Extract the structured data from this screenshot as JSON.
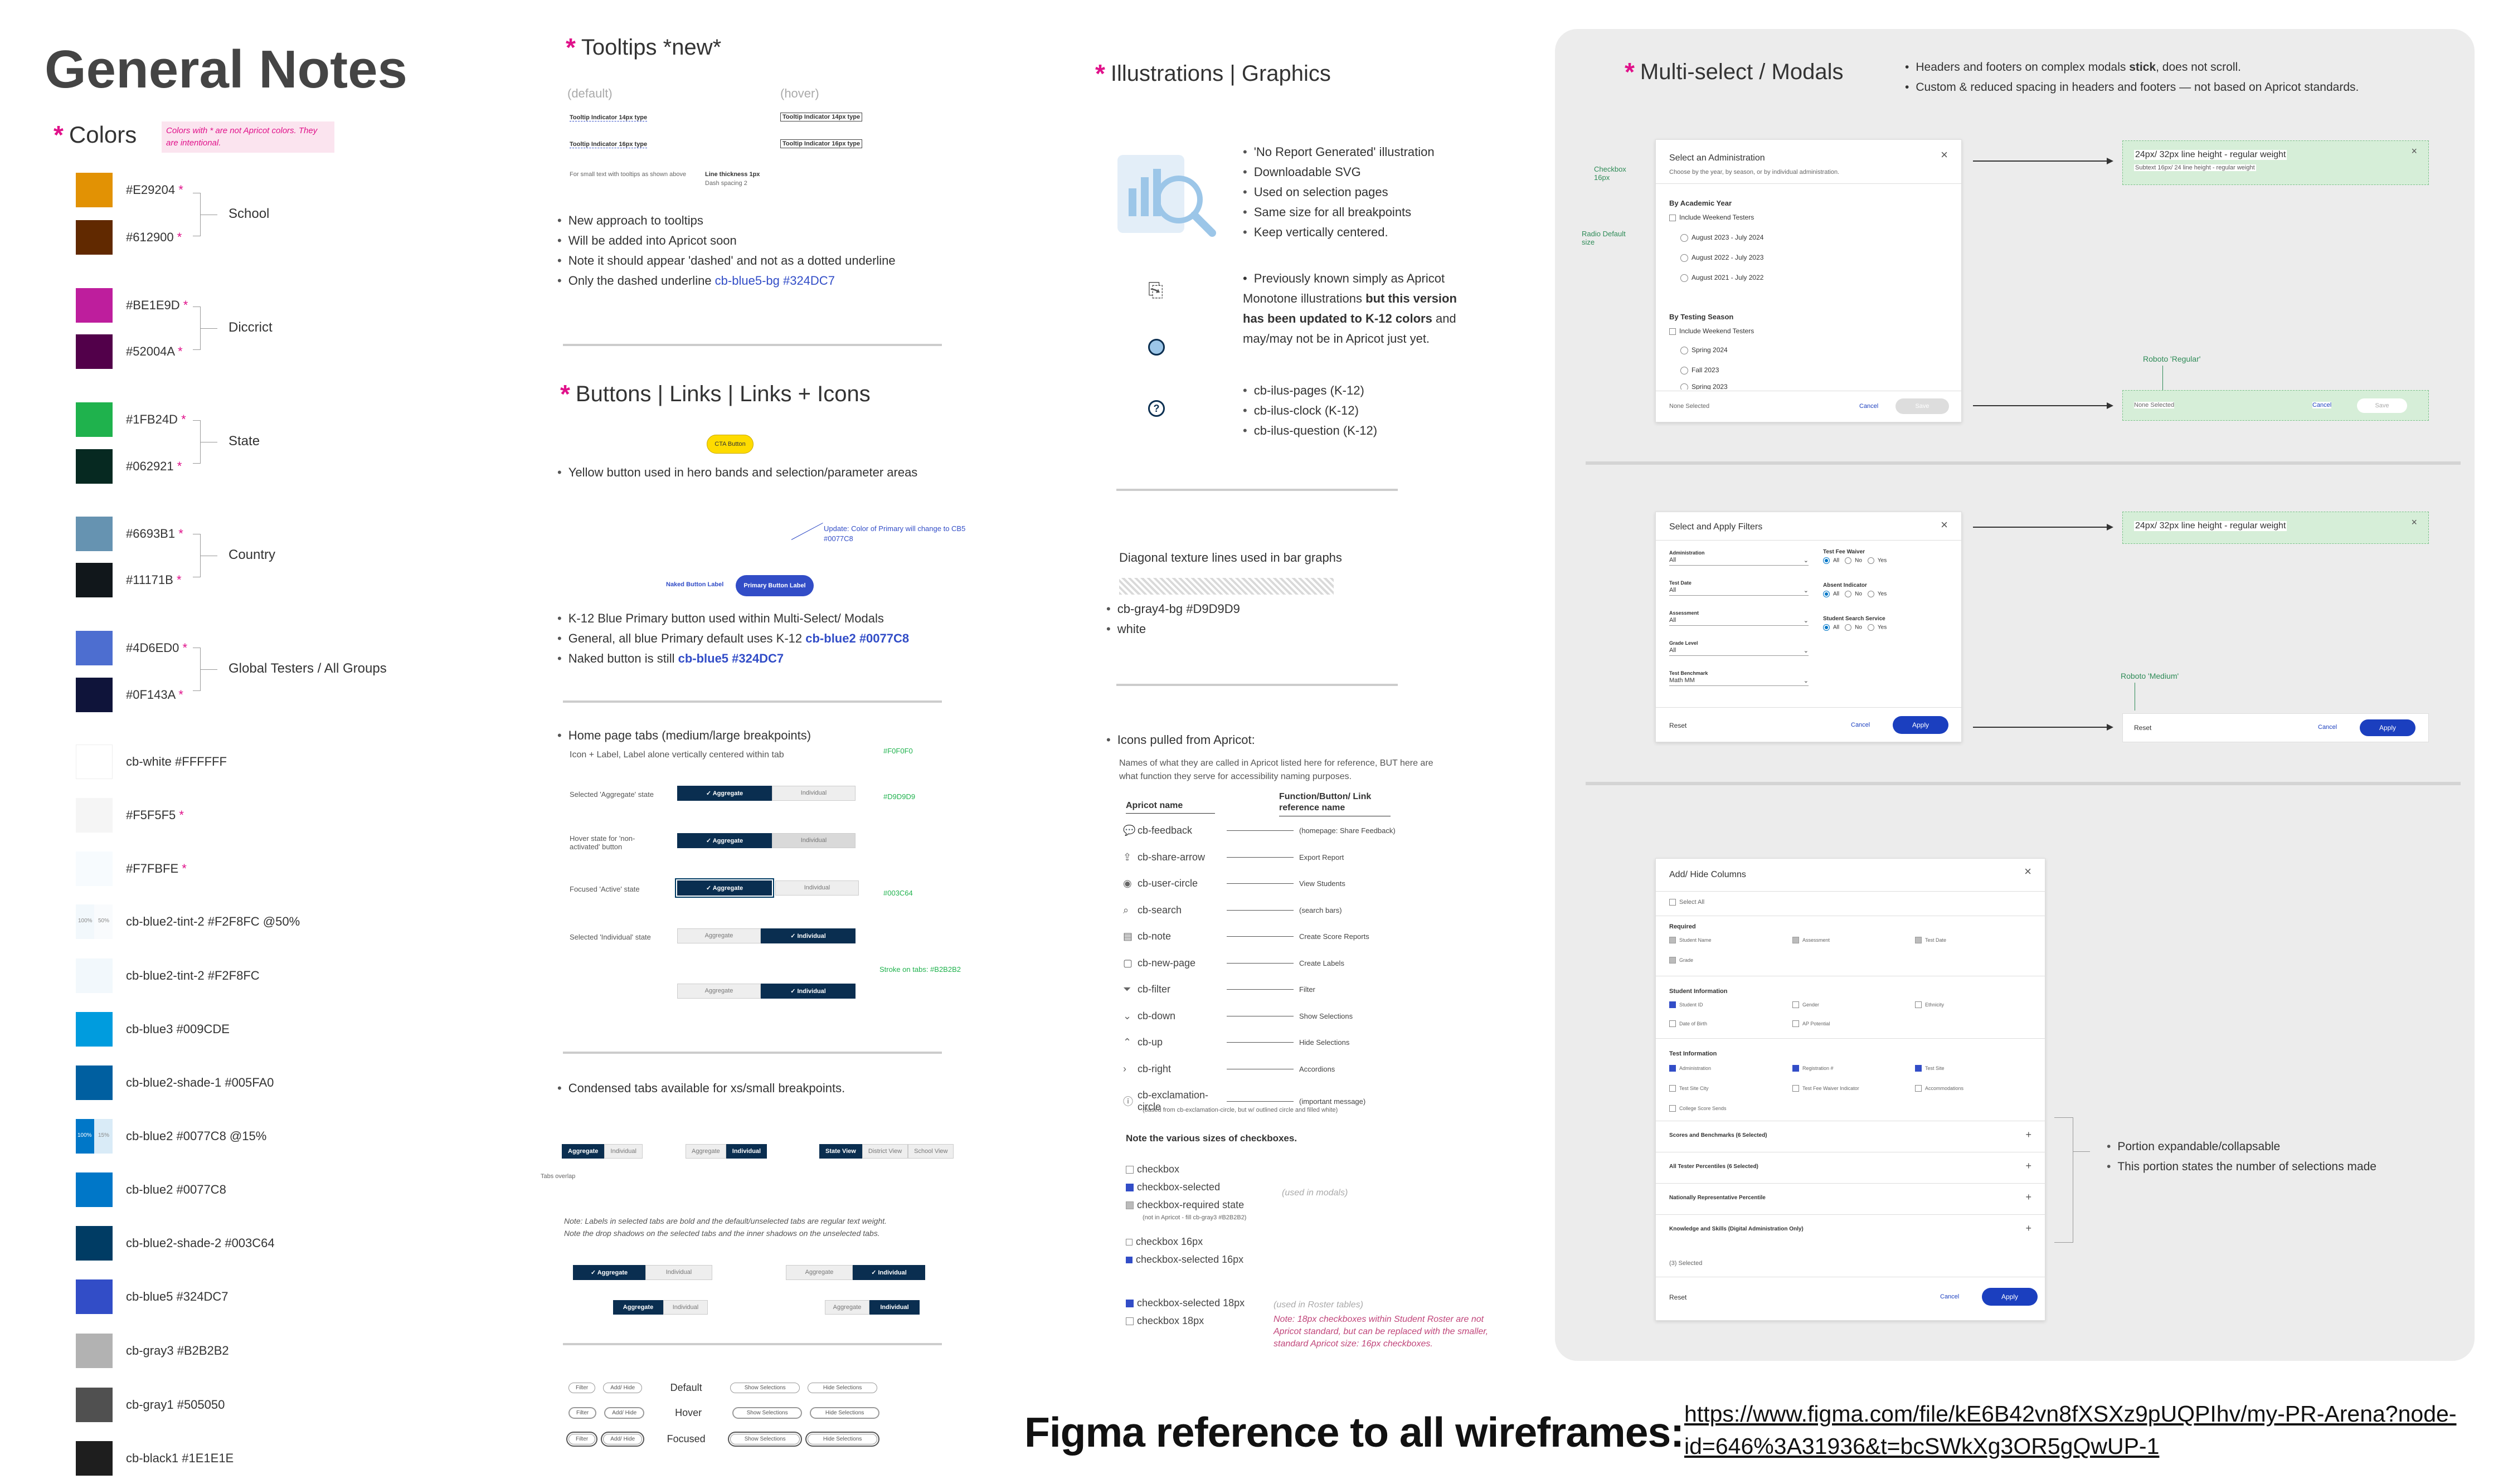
{
  "general": {
    "title": "General Notes"
  },
  "colors": {
    "title": "Colors",
    "note": "Colors with * are not Apricot colors. They are intentional.",
    "groups": [
      {
        "label": "School"
      },
      {
        "label": "Diccrict"
      },
      {
        "label": "State"
      },
      {
        "label": "Country"
      },
      {
        "label": "Global Testers / All Groups"
      }
    ],
    "swatches": [
      {
        "label": "#E29204",
        "star": "*",
        "color": "#E29204"
      },
      {
        "label": "#612900",
        "star": "*",
        "color": "#612900"
      },
      {
        "label": "#BE1E9D",
        "star": "*",
        "color": "#BE1E9D"
      },
      {
        "label": "#52004A",
        "star": "*",
        "color": "#52004A"
      },
      {
        "label": "#1FB24D",
        "star": "*",
        "color": "#1FB24D"
      },
      {
        "label": "#062921",
        "star": "*",
        "color": "#062921"
      },
      {
        "label": "#6693B1",
        "star": "*",
        "color": "#6693B1"
      },
      {
        "label": "#11171B",
        "star": "*",
        "color": "#11171B"
      },
      {
        "label": "#4D6ED0",
        "star": "*",
        "color": "#4D6ED0"
      },
      {
        "label": "#0F143A",
        "star": "*",
        "color": "#0F143A"
      },
      {
        "label": "cb-white  #FFFFFF",
        "star": "",
        "color": "#FFFFFF"
      },
      {
        "label": "#F5F5F5",
        "star": "*",
        "color": "#F5F5F5"
      },
      {
        "label": "#F7FBFE",
        "star": "*",
        "color": "#F7FBFE"
      },
      {
        "label": "cb-blue2-tint-2  #F2F8FC  @50%",
        "star": "",
        "color": "#F9FBFD"
      },
      {
        "label": "cb-blue2-tint-2  #F2F8FC",
        "star": "",
        "color": "#F2F8FC"
      },
      {
        "label": "cb-blue3  #009CDE",
        "star": "",
        "color": "#009CDE"
      },
      {
        "label": "cb-blue2-shade-1  #005FA0",
        "star": "",
        "color": "#005FA0"
      },
      {
        "label": "cb-blue2  #0077C8 @15%",
        "star": "",
        "color": "#0077C8"
      },
      {
        "label": "cb-blue2  #0077C8",
        "star": "",
        "color": "#0077C8"
      },
      {
        "label": "cb-blue2-shade-2  #003C64",
        "star": "",
        "color": "#003C64"
      },
      {
        "label": "cb-blue5  #324DC7",
        "star": "",
        "color": "#324DC7"
      },
      {
        "label": "cb-gray3  #B2B2B2",
        "star": "",
        "color": "#B2B2B2"
      },
      {
        "label": "cb-gray1  #505050",
        "star": "",
        "color": "#505050"
      },
      {
        "label": "cb-black1  #1E1E1E",
        "star": "",
        "color": "#1E1E1E"
      }
    ],
    "swatch_100": "100%",
    "swatch_50": "50%",
    "swatch_15": "15%"
  },
  "tooltips": {
    "title": "Tooltips *new*",
    "default_label": "(default)",
    "hover_label": "(hover)",
    "row1": "Tooltip Indicator 14px type",
    "row2": "Tooltip Indicator 16px type",
    "caption": "For small text with tooltips as shown above",
    "line_note": "Line thickness 1px",
    "dash_note": "Dash spacing 2",
    "bullets": [
      "New approach to tooltips",
      "Will be added into Apricot soon",
      "Note it should appear 'dashed' and not as a dotted underline",
      "Only the dashed underline "
    ],
    "bullet_link": "cb-blue5-bg #324DC7"
  },
  "buttons": {
    "title": "Buttons | Links | Links + Icons",
    "cta": "CTA Button",
    "yellow_note": "Yellow button used in hero bands and selection/parameter areas",
    "update_note": "Update: Color of Primary will change to CB5 #0077C8",
    "naked": "Naked Button Label",
    "primary": "Primary Button Label",
    "bullets": [
      "K-12 Blue Primary button used within Multi-Select/ Modals",
      "General, all blue Primary default uses K-12 ",
      "Naked button is still "
    ],
    "b2_link": "cb-blue2 #0077C8",
    "b3_link": "cb-blue5 #324DC7"
  },
  "tabs": {
    "title": "Home page tabs (medium/large breakpoints)",
    "sub": "Icon + Label, Label alone vertically centered within tab",
    "states": [
      "Selected 'Aggregate' state",
      "Hover state for 'non-activated' button",
      "Focused 'Active' state",
      "Selected 'Individual' state"
    ],
    "aggregate": "Aggregate",
    "individual": "Individual",
    "colors": [
      "#F0F0F0",
      "#D9D9D9",
      "#003C64"
    ],
    "stroke_note": "Stroke on tabs: #B2B2B2",
    "overlap": "Tabs overlap",
    "condensed": "Condensed tabs available for xs/small breakpoints.",
    "state_view": "State View",
    "district_view": "District View",
    "school_view": "School View",
    "notes": [
      "Note: Labels in selected tabs are bold and the default/unselected tabs are regular text weight.",
      "Note the drop shadows on the selected tabs and the inner shadows on the unselected tabs."
    ],
    "pills_rows": [
      "Default",
      "Hover",
      "Focused"
    ],
    "filter": "Filter",
    "addhide": "Add/ Hide",
    "show": "Show Selections",
    "hide": "Hide Selections"
  },
  "illus": {
    "title": "Illustrations | Graphics",
    "bullets1": [
      "'No Report Generated' illustration",
      "Downloadable SVG",
      "Used on selection pages",
      "Same size for all breakpoints",
      "Keep vertically centered."
    ],
    "b2_pre": "Previously known simply as Apricot Monotone illustrations ",
    "b2_bold": "but this version has been updated to K-12 colors",
    "b2_post": " and may/may not be in Apricot just yet.",
    "bullets3": [
      "cb-ilus-pages (K-12)",
      "cb-ilus-clock (K-12)",
      "cb-ilus-question (K-12)"
    ],
    "diag": "Diagonal texture lines used in bar graphs",
    "diag_bullets": [
      "cb-gray4-bg  #D9D9D9",
      "white"
    ],
    "icons_title": "Icons pulled from Apricot:",
    "icons_note": "Names of what they are called in Apricot listed here for reference, BUT here are what function they serve for accessibility naming purposes.",
    "col1": "Apricot name",
    "col2": "Function/Button/ Link reference name",
    "icons": [
      {
        "name": "cb-feedback",
        "fn": "(homepage: Share Feedback)",
        "icon": "💬"
      },
      {
        "name": "cb-share-arrow",
        "fn": "Export Report",
        "icon": "⇪"
      },
      {
        "name": "cb-user-circle",
        "fn": "View Students",
        "icon": "◉"
      },
      {
        "name": "cb-search",
        "fn": "(search bars)",
        "icon": "⌕"
      },
      {
        "name": "cb-note",
        "fn": "Create Score Reports",
        "icon": "▤"
      },
      {
        "name": "cb-new-page",
        "fn": "Create Labels",
        "icon": "▢"
      },
      {
        "name": "cb-filter",
        "fn": "Filter",
        "icon": "⏷"
      },
      {
        "name": "cb-down",
        "fn": "Show Selections",
        "icon": "⌄"
      },
      {
        "name": "cb-up",
        "fn": "Hide Selections",
        "icon": "⌃"
      },
      {
        "name": "cb-right",
        "fn": "Accordions",
        "icon": "›"
      },
      {
        "name": "cb-exclamation-circle",
        "fn": "(important message)",
        "icon": "ⓘ"
      }
    ],
    "excl_note": "(based from cb-exclamation-circle, but w/ outlined circle and filled white)",
    "cb_title": "Note the various sizes of checkboxes.",
    "cb_items": [
      "checkbox",
      "checkbox-selected",
      "checkbox-required state",
      "checkbox 16px",
      "checkbox-selected 16px"
    ],
    "cb_req_note": "(not in Apricot - fill cb-gray3 #B2B2B2)",
    "used_modals": "(used in modals)",
    "cb18": [
      "checkbox-selected 18px",
      "checkbox  18px"
    ],
    "roster": "(used in Roster tables)",
    "roster_note": "Note: 18px checkboxes within Student Roster are not Apricot standard, but can be replaced with the smaller, standard Apricot size: 16px checkboxes."
  },
  "multi": {
    "title": "Multi-select / Modals",
    "notes_pre": "Headers and footers on complex modals ",
    "notes_bold": "stick",
    "notes_post": ", does not scroll.",
    "note2": "Custom & reduced spacing in headers and footers — not based on Apricot standards.",
    "m1_title": "Select an Administration",
    "m1_sub": "Choose by the year, by season, or by individual administration.",
    "by_year": "By Academic Year",
    "include_weekend": "Include Weekend Testers",
    "years": [
      "August 2023 - July 2024",
      "August 2022 - July 2023",
      "August 2021 - July 2022"
    ],
    "by_season": "By Testing Season",
    "seasons": [
      "Spring 2024",
      "Fall 2023",
      "Spring 2023"
    ],
    "none_selected": "None Selected",
    "cancel": "Cancel",
    "save": "Save",
    "cb_annot": "Checkbox 16px",
    "radio_annot": "Radio Default size",
    "green1": "24px/ 32px line height - regular weight",
    "green1b": "Subtext 16px/ 24 line height - regular weight",
    "roboto_regular": "Roboto 'Regular'",
    "roboto_medium": "Roboto 'Medium'",
    "m2_title": "Select and Apply Filters",
    "filters_left": [
      "Administration",
      "Test Date",
      "Assessment",
      "Grade Level",
      "Test Benchmark"
    ],
    "filters_left_val": [
      "All",
      "All",
      "All",
      "All",
      "Math MM"
    ],
    "filters_right": [
      "Test Fee Waiver",
      "Absent Indicator",
      "Student Search Service"
    ],
    "opts": [
      "All",
      "No",
      "Yes"
    ],
    "reset": "Reset",
    "apply": "Apply",
    "m3_title": "Add/ Hide Columns",
    "select_all": "Select All",
    "required": "Required",
    "req_items": [
      "Student Name",
      "Assessment",
      "Test Date",
      "Grade"
    ],
    "student_info": "Student Information",
    "si_items": [
      "Student ID",
      "Gender",
      "Ethnicity",
      "Date of Birth",
      "AP Potential"
    ],
    "test_info": "Test Information",
    "ti_items": [
      "Administration",
      "Registration #",
      "Test Site",
      "Test Site City",
      "Test Fee Waiver Indicator",
      "Accommodations",
      "College Score Sends"
    ],
    "acc": [
      "Scores and Benchmarks  (6 Selected)",
      "All Tester Percentiles  (6 Selected)",
      "Nationally Representative Percentile",
      "Knowledge and Skills (Digital Administration Only)"
    ],
    "selected_count": "(3) Selected",
    "portion": [
      "Portion expandable/collapsable",
      "This portion states the number of selections made"
    ]
  },
  "figma": {
    "label": "Figma reference to all wireframes:",
    "url_1": "https://www.figma.com/file/kE6B42vn8fXSXz9pUQPIhv/my-PR-Arena?node-",
    "url_2": "id=646%3A31936&t=bcSWkXg3OR5gQwUP-1"
  }
}
